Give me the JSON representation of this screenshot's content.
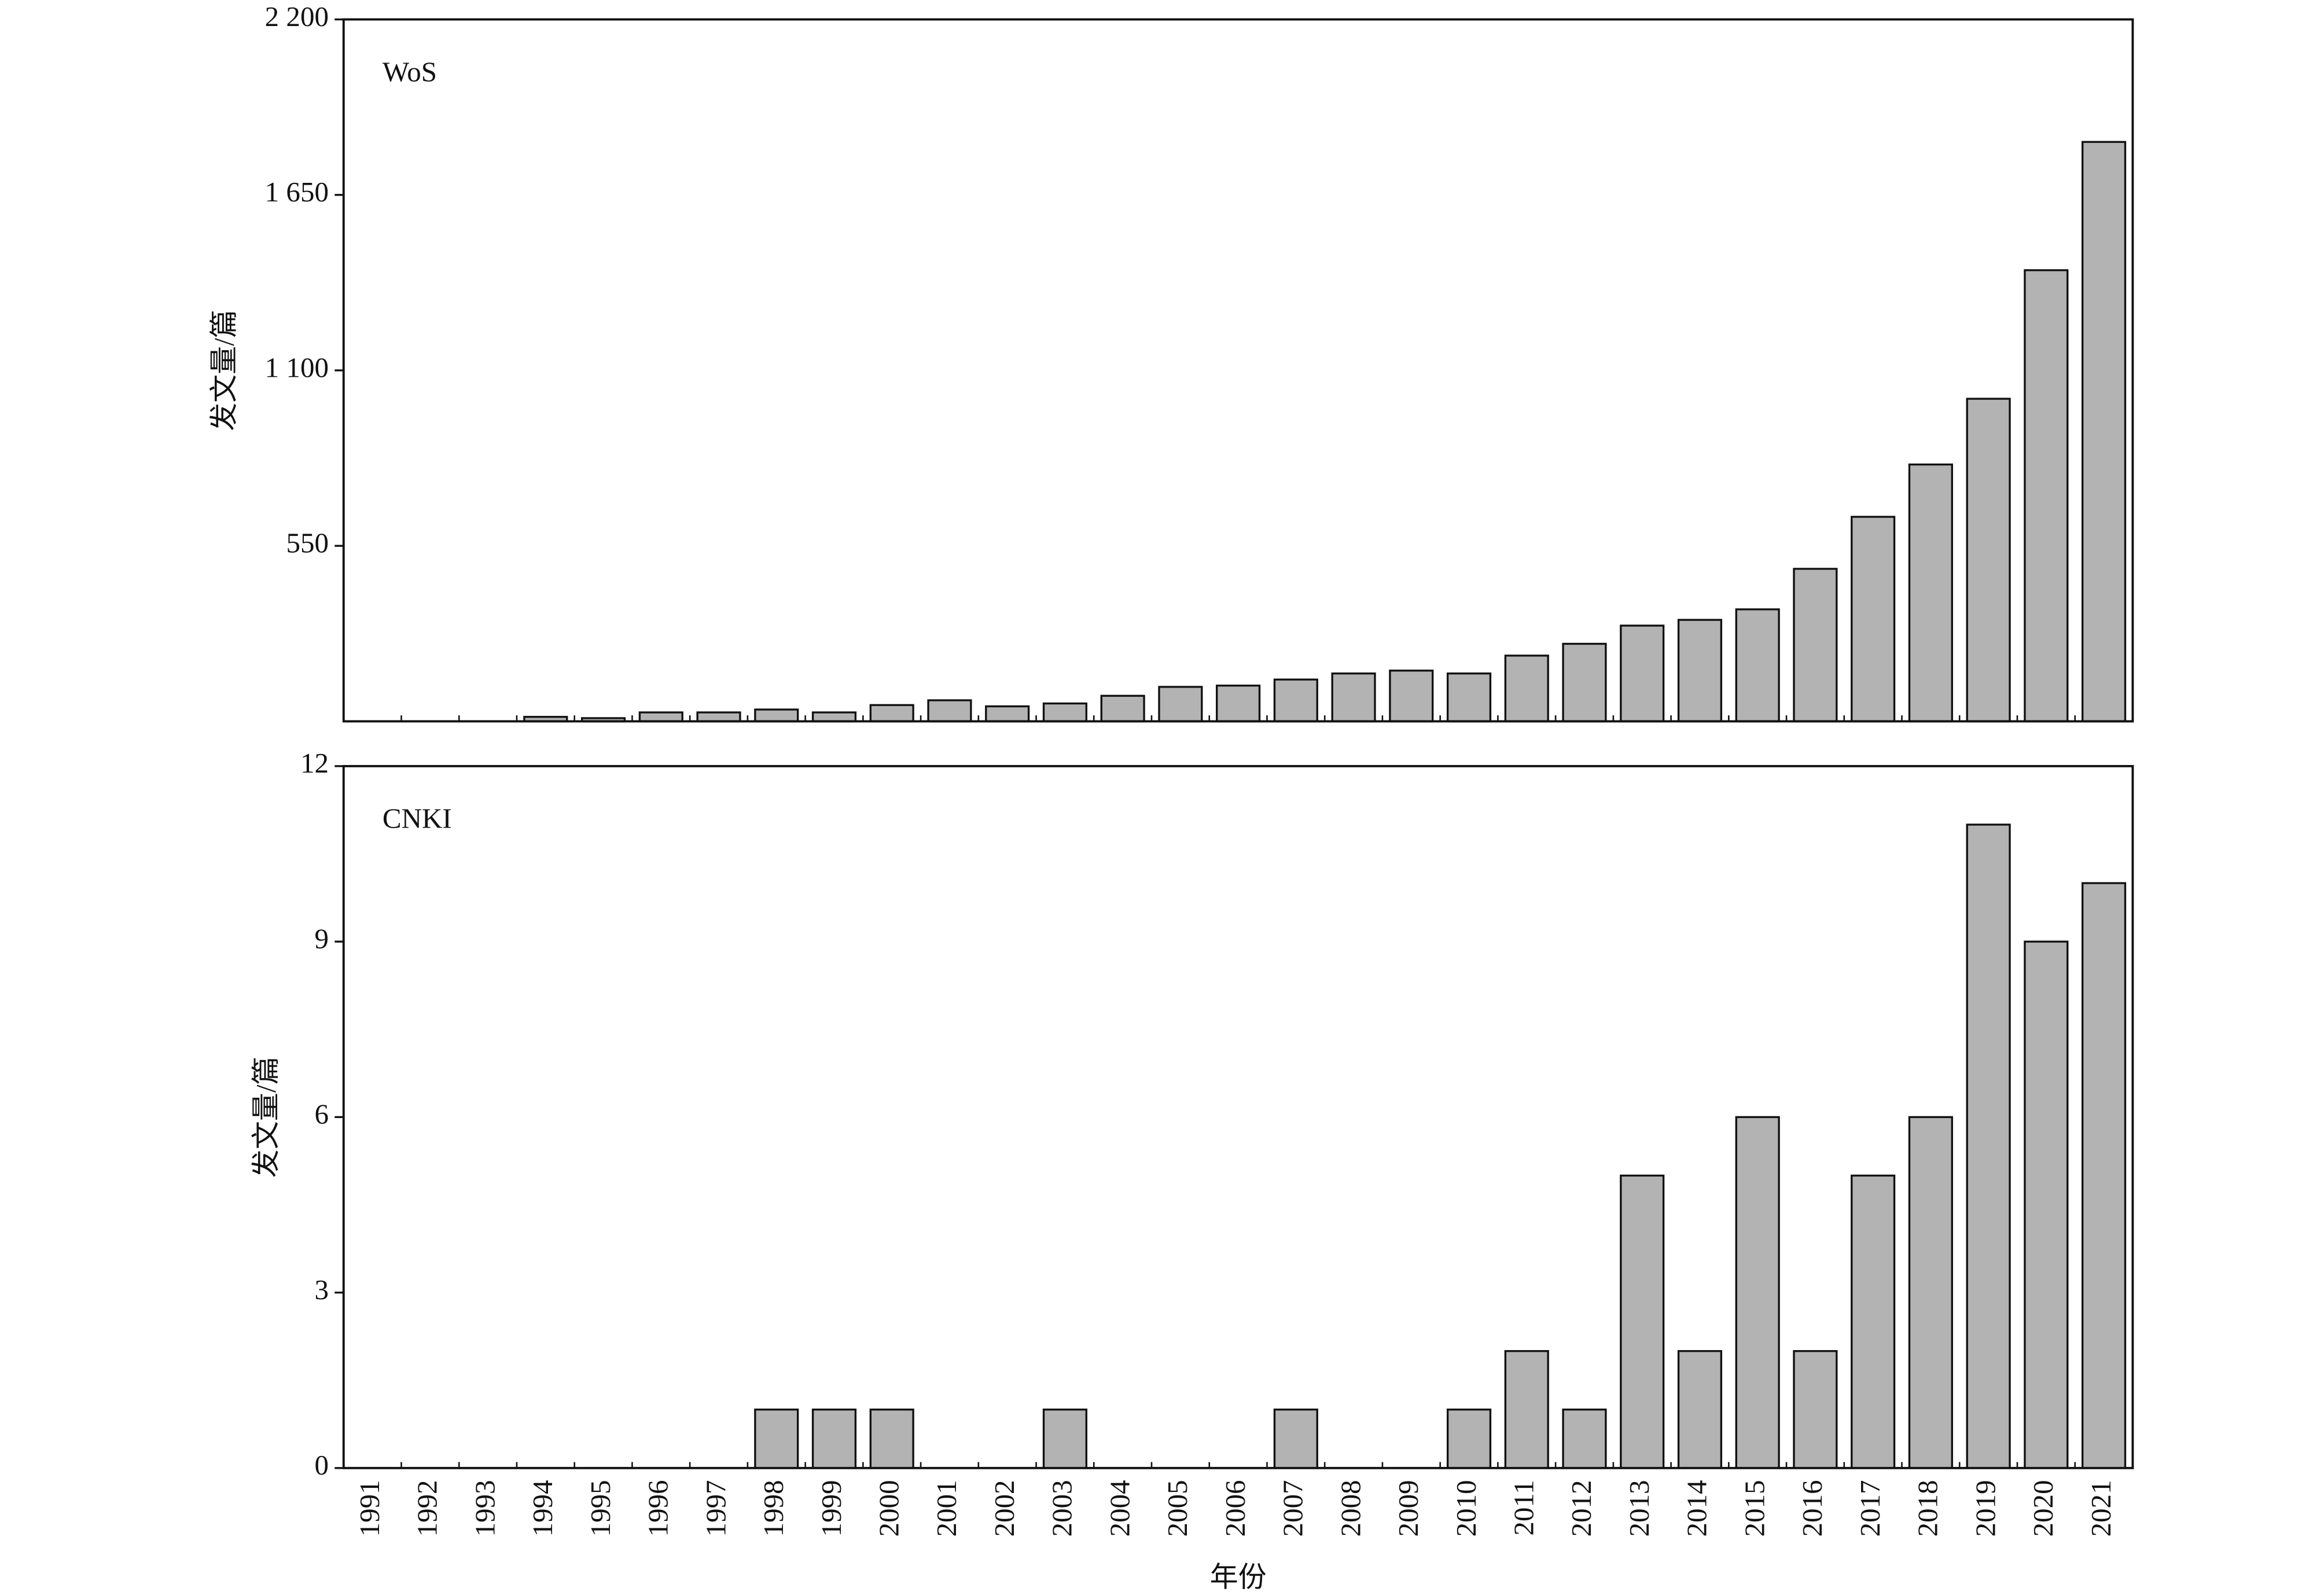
{
  "chart_data": [
    {
      "type": "bar",
      "label": "WoS",
      "ylabel": "发文量/篇",
      "values": [
        0,
        0,
        0,
        14,
        10,
        28,
        28,
        37,
        28,
        51,
        66,
        47,
        56,
        80,
        108,
        112,
        131,
        150,
        159,
        150,
        206,
        243,
        300,
        318,
        351,
        478,
        641,
        805,
        1011,
        1414,
        1816
      ],
      "color": "#b3b3b3",
      "ylim": [
        0,
        2200
      ],
      "yticks": [
        550,
        {
          "value": 1100,
          "label": "1 100"
        },
        {
          "value": 1650,
          "label": "1 650"
        },
        {
          "value": 2200,
          "label": "2 200"
        }
      ]
    },
    {
      "type": "bar",
      "label": "CNKI",
      "ylabel": "发文量/篇",
      "xlabel": "年份",
      "categories": [
        "1991",
        "1992",
        "1993",
        "1994",
        "1995",
        "1996",
        "1997",
        "1998",
        "1999",
        "2000",
        "2001",
        "2002",
        "2003",
        "2004",
        "2005",
        "2006",
        "2007",
        "2008",
        "2009",
        "2010",
        "2011",
        "2012",
        "2013",
        "2014",
        "2015",
        "2016",
        "2017",
        "2018",
        "2019",
        "2020",
        "2021"
      ],
      "values": [
        0,
        0,
        0,
        0,
        0,
        0,
        0,
        1,
        1,
        1,
        0,
        0,
        1,
        0,
        0,
        0,
        1,
        0,
        0,
        1,
        2,
        1,
        5,
        2,
        6,
        2,
        5,
        6,
        11,
        9,
        10
      ],
      "color": "#b3b3b3",
      "ylim": [
        0,
        12
      ],
      "yticks": [
        0,
        3,
        6,
        9,
        12
      ]
    }
  ]
}
